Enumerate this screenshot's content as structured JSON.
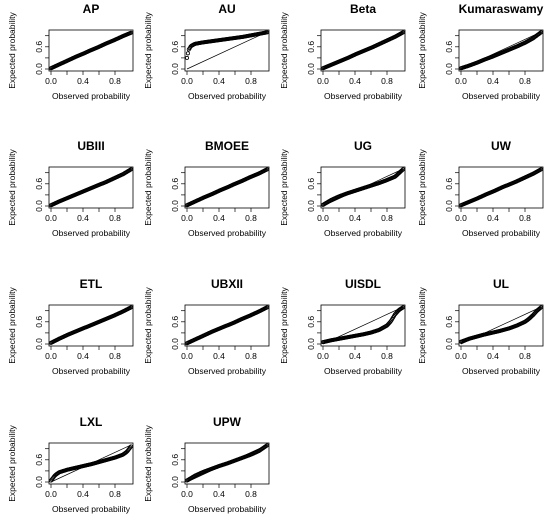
{
  "chart_data": {
    "type": "scatter",
    "xlabel": "Observed probability",
    "ylabel": "Expected probability",
    "xlim": [
      0,
      1
    ],
    "ylim": [
      0,
      1
    ],
    "xticks": [
      "0.0",
      "0.4",
      "0.8"
    ],
    "yticks": [
      "0.0",
      "0.6"
    ],
    "reference_line": "y = x",
    "grid": false,
    "panels": [
      {
        "title": "AP",
        "x": [
          0,
          0.1,
          0.2,
          0.3,
          0.4,
          0.5,
          0.6,
          0.7,
          0.8,
          0.9,
          1.0
        ],
        "y": [
          0.02,
          0.12,
          0.22,
          0.32,
          0.41,
          0.51,
          0.6,
          0.7,
          0.79,
          0.89,
          0.98
        ]
      },
      {
        "title": "AU",
        "x": [
          0,
          0.02,
          0.05,
          0.1,
          0.2,
          0.3,
          0.4,
          0.5,
          0.6,
          0.7,
          0.8,
          0.9,
          1.0
        ],
        "y": [
          0.3,
          0.52,
          0.62,
          0.68,
          0.72,
          0.75,
          0.78,
          0.81,
          0.84,
          0.87,
          0.91,
          0.95,
          0.99
        ]
      },
      {
        "title": "Beta",
        "x": [
          0,
          0.1,
          0.2,
          0.3,
          0.4,
          0.5,
          0.6,
          0.7,
          0.8,
          0.9,
          1.0
        ],
        "y": [
          0.02,
          0.11,
          0.2,
          0.29,
          0.39,
          0.48,
          0.57,
          0.67,
          0.77,
          0.87,
          0.99
        ]
      },
      {
        "title": "Kumaraswamy",
        "x": [
          0,
          0.1,
          0.2,
          0.3,
          0.4,
          0.5,
          0.6,
          0.7,
          0.8,
          0.9,
          1.0
        ],
        "y": [
          0.02,
          0.09,
          0.17,
          0.26,
          0.34,
          0.43,
          0.52,
          0.61,
          0.71,
          0.83,
          0.99
        ]
      },
      {
        "title": "UBIII",
        "x": [
          0,
          0.1,
          0.2,
          0.3,
          0.4,
          0.5,
          0.6,
          0.7,
          0.8,
          0.9,
          1.0
        ],
        "y": [
          0.02,
          0.12,
          0.21,
          0.3,
          0.39,
          0.48,
          0.57,
          0.66,
          0.76,
          0.86,
          0.99
        ]
      },
      {
        "title": "BMOEE",
        "x": [
          0,
          0.1,
          0.2,
          0.3,
          0.4,
          0.5,
          0.6,
          0.7,
          0.8,
          0.9,
          1.0
        ],
        "y": [
          0.02,
          0.12,
          0.22,
          0.31,
          0.41,
          0.5,
          0.6,
          0.69,
          0.79,
          0.88,
          0.99
        ]
      },
      {
        "title": "UG",
        "x": [
          0,
          0.1,
          0.2,
          0.3,
          0.4,
          0.5,
          0.6,
          0.7,
          0.8,
          0.9,
          1.0
        ],
        "y": [
          0.03,
          0.16,
          0.26,
          0.34,
          0.41,
          0.48,
          0.55,
          0.62,
          0.7,
          0.79,
          0.99
        ]
      },
      {
        "title": "UW",
        "x": [
          0,
          0.1,
          0.2,
          0.3,
          0.4,
          0.5,
          0.6,
          0.7,
          0.8,
          0.9,
          1.0
        ],
        "y": [
          0.02,
          0.11,
          0.2,
          0.3,
          0.39,
          0.49,
          0.58,
          0.67,
          0.77,
          0.87,
          0.99
        ]
      },
      {
        "title": "ETL",
        "x": [
          0,
          0.1,
          0.2,
          0.3,
          0.4,
          0.5,
          0.6,
          0.7,
          0.8,
          0.9,
          1.0
        ],
        "y": [
          0.03,
          0.14,
          0.24,
          0.33,
          0.42,
          0.51,
          0.6,
          0.69,
          0.78,
          0.88,
          0.99
        ]
      },
      {
        "title": "UBXII",
        "x": [
          0,
          0.1,
          0.2,
          0.3,
          0.4,
          0.5,
          0.6,
          0.7,
          0.8,
          0.9,
          1.0
        ],
        "y": [
          0.02,
          0.12,
          0.22,
          0.32,
          0.41,
          0.5,
          0.59,
          0.69,
          0.78,
          0.88,
          0.99
        ]
      },
      {
        "title": "UISDL",
        "x": [
          0,
          0.1,
          0.2,
          0.3,
          0.4,
          0.5,
          0.6,
          0.7,
          0.8,
          0.85,
          0.9,
          0.95,
          1.0
        ],
        "y": [
          0.05,
          0.1,
          0.14,
          0.18,
          0.22,
          0.26,
          0.31,
          0.38,
          0.5,
          0.62,
          0.8,
          0.92,
          0.99
        ]
      },
      {
        "title": "UL",
        "x": [
          0,
          0.1,
          0.2,
          0.3,
          0.4,
          0.5,
          0.6,
          0.7,
          0.8,
          0.85,
          0.9,
          0.95,
          1.0
        ],
        "y": [
          0.06,
          0.14,
          0.2,
          0.26,
          0.31,
          0.36,
          0.42,
          0.5,
          0.6,
          0.68,
          0.78,
          0.9,
          0.99
        ]
      },
      {
        "title": "LXL",
        "x": [
          0,
          0.05,
          0.1,
          0.2,
          0.3,
          0.4,
          0.5,
          0.6,
          0.7,
          0.8,
          0.9,
          0.95,
          1.0
        ],
        "y": [
          0.04,
          0.18,
          0.26,
          0.33,
          0.38,
          0.43,
          0.48,
          0.54,
          0.6,
          0.66,
          0.74,
          0.82,
          0.96
        ]
      },
      {
        "title": "UPW",
        "x": [
          0,
          0.1,
          0.2,
          0.3,
          0.4,
          0.5,
          0.6,
          0.7,
          0.8,
          0.9,
          1.0
        ],
        "y": [
          0.04,
          0.17,
          0.27,
          0.35,
          0.43,
          0.5,
          0.58,
          0.66,
          0.74,
          0.84,
          0.99
        ]
      }
    ]
  }
}
